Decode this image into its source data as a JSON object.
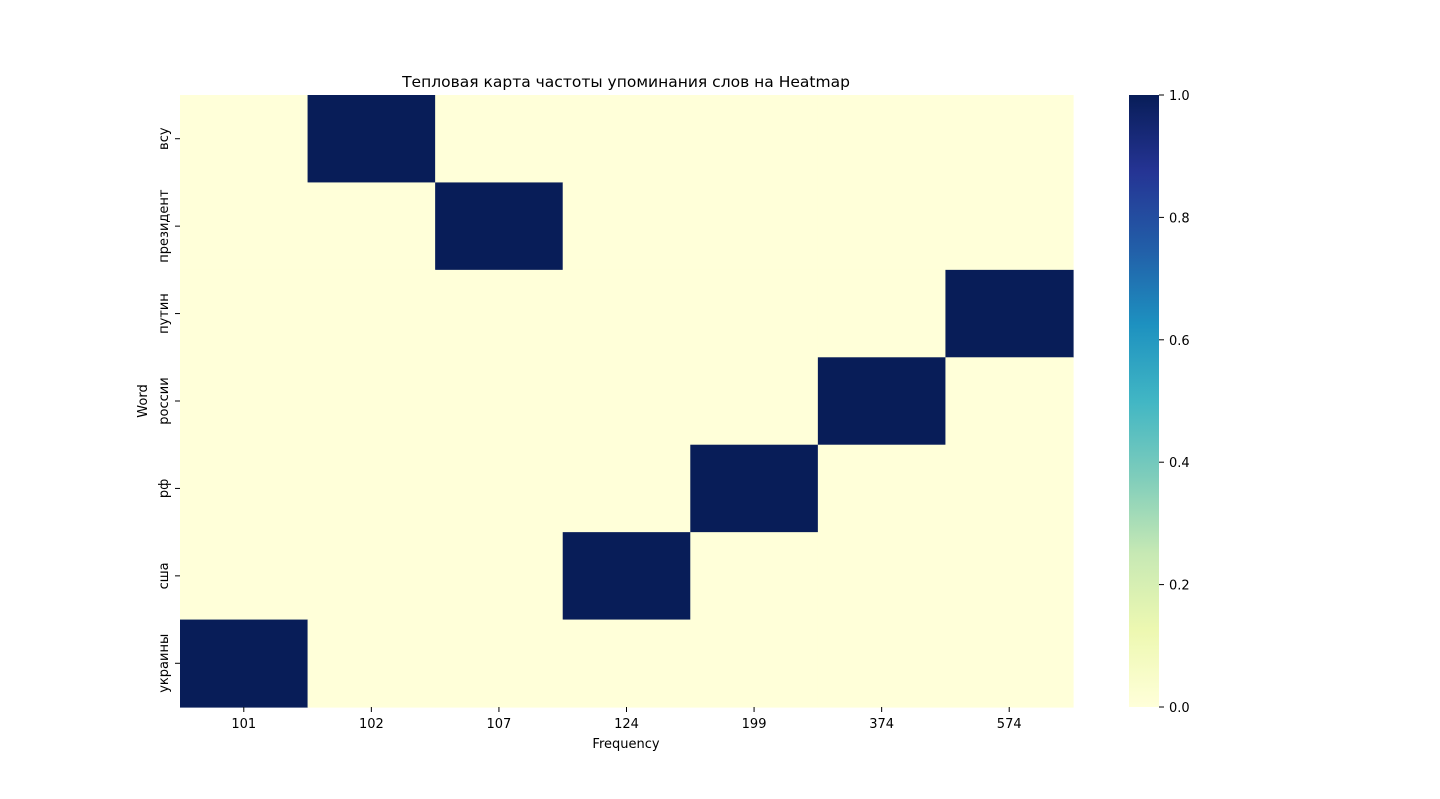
{
  "chart_data": {
    "type": "heatmap",
    "title": "Тепловая карта частоты упоминания слов на Heatmap",
    "xlabel": "Frequency",
    "ylabel": "Word",
    "x": [
      "101",
      "102",
      "107",
      "124",
      "199",
      "374",
      "574"
    ],
    "y": [
      "всу",
      "президент",
      "путин",
      "россии",
      "рф",
      "сша",
      "украины"
    ],
    "values": [
      [
        0,
        1,
        0,
        0,
        0,
        0,
        0
      ],
      [
        0,
        0,
        1,
        0,
        0,
        0,
        0
      ],
      [
        0,
        0,
        0,
        0,
        0,
        0,
        1
      ],
      [
        0,
        0,
        0,
        0,
        0,
        1,
        0
      ],
      [
        0,
        0,
        0,
        0,
        1,
        0,
        0
      ],
      [
        0,
        0,
        0,
        1,
        0,
        0,
        0
      ],
      [
        1,
        0,
        0,
        0,
        0,
        0,
        0
      ]
    ],
    "colorbar": {
      "range": [
        0.0,
        1.0
      ],
      "ticks": [
        "0.0",
        "0.2",
        "0.4",
        "0.6",
        "0.8",
        "1.0"
      ],
      "colormap": "YlGnBu",
      "colors": [
        "#ffffd9",
        "#edf8b1",
        "#c7e9b4",
        "#7fcdbb",
        "#41b6c4",
        "#1d91c0",
        "#225ea8",
        "#253494",
        "#081d58"
      ]
    }
  }
}
